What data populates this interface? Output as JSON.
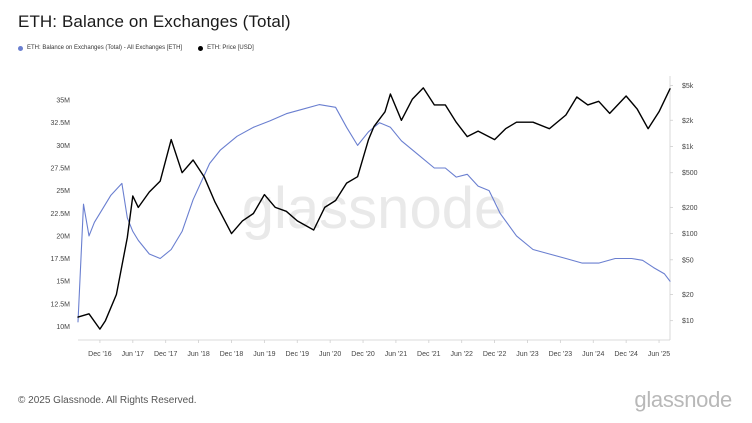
{
  "title": "ETH: Balance on Exchanges (Total)",
  "legend": [
    {
      "label": "ETH: Balance on Exchanges (Total) - All Exchanges [ETH]",
      "color": "#6a7fd0"
    },
    {
      "label": "ETH: Price [USD]",
      "color": "#000000"
    }
  ],
  "watermark": "glassnode",
  "footer": {
    "copyright": "© 2025 Glassnode. All Rights Reserved.",
    "logo": "glassnode"
  },
  "chart_data": {
    "type": "line",
    "title": "ETH: Balance on Exchanges (Total)",
    "x_ticks": [
      "Dec '16",
      "Jun '17",
      "Dec '17",
      "Jun '18",
      "Dec '18",
      "Jun '19",
      "Dec '19",
      "Jun '20",
      "Dec '20",
      "Jun '21",
      "Dec '21",
      "Jun '22",
      "Dec '22",
      "Jun '23",
      "Dec '23",
      "Jun '24",
      "Dec '24",
      "Jun '25"
    ],
    "x_range": [
      "2016-08",
      "2025-08"
    ],
    "y_left": {
      "ticks": [
        "10M",
        "12.5M",
        "15M",
        "17.5M",
        "20M",
        "22.5M",
        "25M",
        "27.5M",
        "30M",
        "32.5M",
        "35M"
      ],
      "range": [
        8500000,
        37000000
      ]
    },
    "y_right": {
      "scale": "log",
      "ticks": [
        "$10",
        "$20",
        "$50",
        "$100",
        "$200",
        "$500",
        "$1k",
        "$2k",
        "$5k"
      ],
      "range": [
        6,
        5500
      ]
    },
    "grid": false,
    "legend_position": "top-left",
    "series": [
      {
        "name": "ETH: Balance on Exchanges (Total) - All Exchanges [ETH]",
        "axis": "left",
        "color": "#6a7fd0",
        "x": [
          "2016-08",
          "2016-09",
          "2016-10",
          "2016-11",
          "2016-12",
          "2017-02",
          "2017-04",
          "2017-05",
          "2017-06",
          "2017-07",
          "2017-09",
          "2017-11",
          "2018-01",
          "2018-03",
          "2018-05",
          "2018-08",
          "2018-10",
          "2019-01",
          "2019-04",
          "2019-07",
          "2019-10",
          "2020-01",
          "2020-04",
          "2020-07",
          "2020-09",
          "2020-11",
          "2021-01",
          "2021-03",
          "2021-05",
          "2021-07",
          "2021-10",
          "2022-01",
          "2022-03",
          "2022-05",
          "2022-07",
          "2022-09",
          "2022-11",
          "2023-01",
          "2023-04",
          "2023-07",
          "2023-10",
          "2024-01",
          "2024-04",
          "2024-07",
          "2024-10",
          "2025-01",
          "2025-03",
          "2025-05",
          "2025-07",
          "2025-08"
        ],
        "y": [
          10500000,
          23500000,
          20000000,
          21500000,
          22500000,
          24500000,
          25800000,
          22000000,
          20500000,
          19500000,
          18000000,
          17500000,
          18500000,
          20500000,
          24000000,
          28000000,
          29500000,
          31000000,
          32000000,
          32700000,
          33500000,
          34000000,
          34500000,
          34200000,
          32000000,
          30000000,
          31500000,
          32500000,
          32000000,
          30500000,
          29000000,
          27500000,
          27500000,
          26500000,
          26800000,
          25500000,
          25000000,
          22500000,
          20000000,
          18500000,
          18000000,
          17500000,
          17000000,
          17000000,
          17500000,
          17500000,
          17300000,
          16500000,
          15800000,
          15000000
        ]
      },
      {
        "name": "ETH: Price [USD]",
        "axis": "right",
        "color": "#000000",
        "x": [
          "2016-08",
          "2016-10",
          "2016-12",
          "2017-01",
          "2017-03",
          "2017-05",
          "2017-06",
          "2017-07",
          "2017-09",
          "2017-11",
          "2018-01",
          "2018-03",
          "2018-05",
          "2018-07",
          "2018-09",
          "2018-12",
          "2019-02",
          "2019-04",
          "2019-06",
          "2019-08",
          "2019-10",
          "2019-12",
          "2020-03",
          "2020-05",
          "2020-07",
          "2020-09",
          "2020-11",
          "2021-01",
          "2021-02",
          "2021-04",
          "2021-05",
          "2021-07",
          "2021-09",
          "2021-11",
          "2022-01",
          "2022-03",
          "2022-05",
          "2022-07",
          "2022-09",
          "2022-12",
          "2023-02",
          "2023-04",
          "2023-07",
          "2023-10",
          "2024-01",
          "2024-03",
          "2024-05",
          "2024-07",
          "2024-09",
          "2024-12",
          "2025-02",
          "2025-04",
          "2025-06",
          "2025-08"
        ],
        "y": [
          11,
          12,
          8,
          10,
          20,
          90,
          270,
          200,
          300,
          400,
          1200,
          500,
          700,
          450,
          230,
          100,
          140,
          170,
          280,
          200,
          180,
          140,
          110,
          200,
          240,
          380,
          450,
          1200,
          1700,
          2500,
          4000,
          2000,
          3500,
          4700,
          3000,
          3000,
          1900,
          1300,
          1500,
          1200,
          1600,
          1900,
          1900,
          1600,
          2300,
          3700,
          3000,
          3300,
          2400,
          3800,
          2700,
          1600,
          2500,
          4600
        ]
      }
    ]
  }
}
